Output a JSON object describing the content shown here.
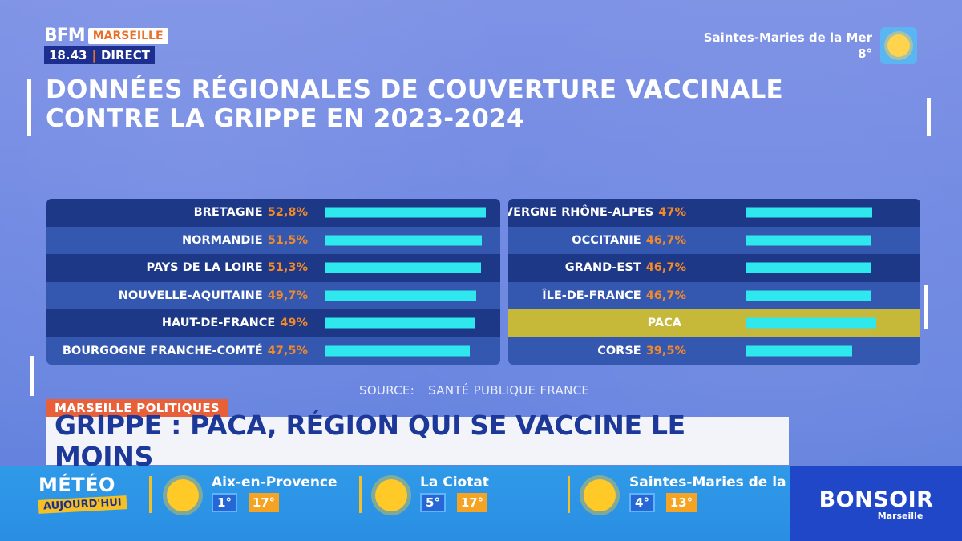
{
  "channel": {
    "brand": "BFM",
    "city": "MARSEILLE",
    "time": "18.43",
    "live": "DIRECT"
  },
  "top_weather": {
    "location": "Saintes-Maries de la Mer",
    "temp": "8°",
    "icon": "sun-icon"
  },
  "title": {
    "line1": "DONNÉES RÉGIONALES DE COUVERTURE VACCINALE",
    "line2": "CONTRE LA GRIPPE EN 2023-2024"
  },
  "chart_data": {
    "type": "bar",
    "series": [
      {
        "values": [
          52.8,
          51.5,
          51.3,
          49.7,
          49,
          47.5,
          47,
          46.7,
          46.7,
          46.7,
          null,
          39.5
        ]
      }
    ],
    "categories": [
      "BRETAGNE",
      "NORMANDIE",
      "PAYS DE LA LOIRE",
      "NOUVELLE-AQUITAINE",
      "HAUT-DE-FRANCE",
      "BOURGOGNE FRANCHE-COMTÉ",
      "AUVERGNE RHÔNE-ALPES",
      "OCCITANIE",
      "GRAND-EST",
      "ÎLE-DE-FRANCE",
      "PACA",
      "CORSE"
    ],
    "value_labels": [
      "52,8%",
      "51,5%",
      "51,3%",
      "49,7%",
      "49%",
      "47,5%",
      "47%",
      "46,7%",
      "46,7%",
      "46,7%",
      "",
      "39,5%"
    ],
    "highlighted": "PACA",
    "colors": {
      "bar": "#2fe8ee",
      "row_dark": "#1e3888",
      "row_light": "#3457b0",
      "highlight": "#c6b93a",
      "value_text": "#f28a2a"
    },
    "tables": [
      {
        "rows": [
          0,
          1,
          2,
          3,
          4,
          5
        ]
      },
      {
        "rows": [
          6,
          7,
          8,
          9,
          10,
          11
        ]
      }
    ]
  },
  "source": {
    "label": "SOURCE:",
    "text": "SANTÉ PUBLIQUE FRANCE"
  },
  "banner": {
    "tag": "MARSEILLE POLITIQUES",
    "headline": "GRIPPE : PACA, RÉGION QUI SE VACCINE LE MOINS"
  },
  "weather_bar": {
    "title": "MÉTÉO",
    "subtitle": "AUJOURD'HUI",
    "cities": [
      {
        "name": "Aix-en-Provence",
        "min": "1°",
        "max": "17°",
        "icon": "sun-icon"
      },
      {
        "name": "La Ciotat",
        "min": "5°",
        "max": "17°",
        "icon": "sun-icon"
      },
      {
        "name": "Saintes-Maries de la Mer",
        "min": "4°",
        "max": "13°",
        "icon": "sun-icon"
      }
    ]
  },
  "show": {
    "name": "BONSOIR",
    "sub": "Marseille"
  }
}
